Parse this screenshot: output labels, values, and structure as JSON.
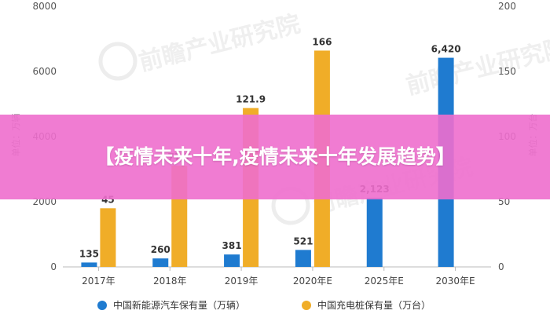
{
  "chart_data": {
    "type": "bar",
    "categories": [
      "2017年",
      "2018年",
      "2019年",
      "2020年E",
      "2025年E",
      "2030年E"
    ],
    "series": [
      {
        "name": "中国新能源汽车保有量（万辆）",
        "axis": "left",
        "color": "#1f7bd0",
        "values": [
          135,
          260,
          381,
          521,
          2123,
          6420
        ],
        "labels": [
          "135",
          "260",
          "381",
          "521",
          "2,123",
          "6,420"
        ]
      },
      {
        "name": "中国充电桩保有量（万台）",
        "axis": "right",
        "color": "#f0ad28",
        "values": [
          45,
          77.7,
          121.9,
          166,
          null,
          null
        ],
        "labels": [
          "45",
          "77.7",
          "121.9",
          "166",
          "",
          ""
        ]
      }
    ],
    "left_axis": {
      "title": "单位：万辆",
      "ylim": [
        0,
        8000
      ],
      "ticks": [
        "0",
        "2000",
        "4000",
        "6000",
        "8000"
      ]
    },
    "right_axis": {
      "title": "单位：万台",
      "ylim": [
        0,
        200
      ],
      "ticks": [
        "0",
        "50",
        "100",
        "150",
        "200"
      ]
    },
    "grid": false,
    "legend_position": "bottom"
  },
  "watermark": {
    "text": "前瞻产业研究院"
  },
  "overlay": {
    "title": "【疫情未来十年,疫情未来十年发展趋势】"
  }
}
